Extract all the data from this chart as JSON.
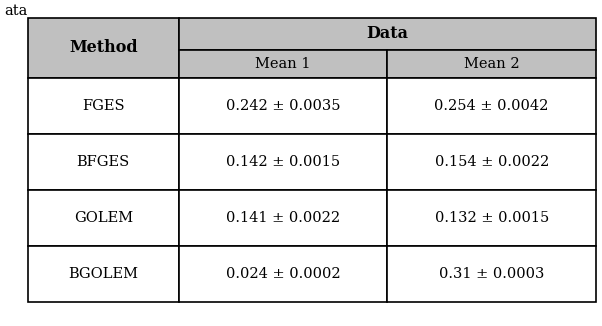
{
  "title_above": "ata",
  "header_top": "Data",
  "header_sub": [
    "Mean 1",
    "Mean 2"
  ],
  "col0_header": "Method",
  "rows": [
    [
      "FGES",
      "0.242 ± 0.0035",
      "0.254 ± 0.0042"
    ],
    [
      "BFGES",
      "0.142 ± 0.0015",
      "0.154 ± 0.0022"
    ],
    [
      "GOLEM",
      "0.141 ± 0.0022",
      "0.132 ± 0.0015"
    ],
    [
      "BGOLEM",
      "0.024 ± 0.0002",
      "0.31 ± 0.0003"
    ]
  ],
  "header_bg": "#C0C0C0",
  "cell_bg": "#FFFFFF",
  "border_color": "#000000",
  "text_color": "#000000",
  "font_size": 10.5,
  "header_font_size": 11.5,
  "title_fontsize": 10.5,
  "fig_width": 6.02,
  "fig_height": 3.26,
  "dpi": 100
}
